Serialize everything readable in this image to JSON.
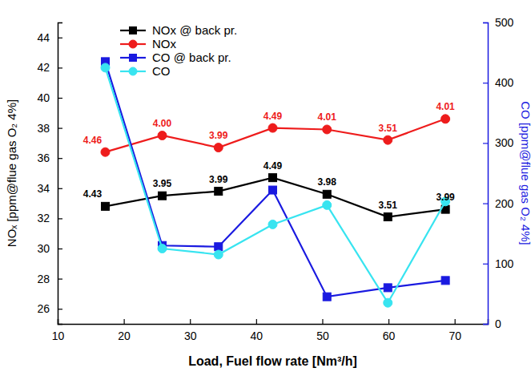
{
  "chart_data": {
    "type": "line",
    "x_label": "Load, Fuel flow rate [Nm³/h]",
    "y_label": "NOₓ [ppm@flue gas O₂ 4%]",
    "y2_label": "CO [ppm@flue gas O₂ 4%]",
    "x": [
      17.2,
      25.8,
      34.3,
      42.5,
      50.7,
      59.9,
      68.6
    ],
    "xlim": [
      10,
      75
    ],
    "xticks": [
      10,
      20,
      30,
      40,
      50,
      60,
      70
    ],
    "ylim": [
      25,
      45
    ],
    "yticks": [
      26,
      28,
      30,
      32,
      34,
      36,
      38,
      40,
      42,
      44
    ],
    "y2lim": [
      0,
      500
    ],
    "y2ticks": [
      0,
      100,
      200,
      300,
      400,
      500
    ],
    "legend": "upper left",
    "grid": false,
    "series": [
      {
        "name": "NOx @ back pr.",
        "color": "#000000",
        "marker": "square",
        "line_style": "solid",
        "values": [
          32.8,
          33.5,
          33.8,
          34.7,
          33.6,
          32.1,
          32.6
        ],
        "annotations": [
          "4.43",
          "3.95",
          "3.99",
          "4.49",
          "3.98",
          "3.51",
          "3.99"
        ]
      },
      {
        "name": "NOx",
        "color": "#ee1c1c",
        "marker": "circle",
        "line_style": "solid",
        "values": [
          36.4,
          37.5,
          36.7,
          38.0,
          37.9,
          37.2,
          38.6
        ],
        "annotations": [
          "4.46",
          "4.00",
          "3.99",
          "4.49",
          "4.01",
          "3.51",
          "4.01"
        ]
      },
      {
        "name": "CO @ back pr.",
        "color": "#1a1ae0",
        "marker": "square",
        "line_style": "solid",
        "axis": "y2",
        "values": [
          435,
          130,
          128,
          222,
          45,
          60,
          72
        ]
      },
      {
        "name": "CO",
        "color": "#38e4f0",
        "marker": "circle",
        "line_style": "solid",
        "axis": "y2",
        "values": [
          425,
          125,
          115,
          165,
          197,
          35,
          203
        ]
      }
    ]
  }
}
